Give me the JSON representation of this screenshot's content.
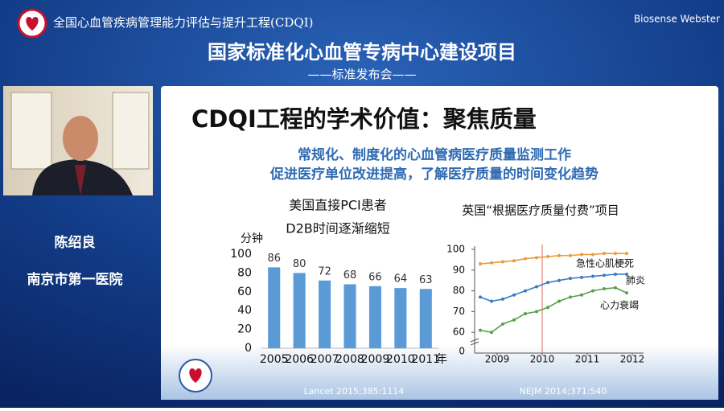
{
  "header": {
    "program": "全国心血管疾病管理能力评估与提升工程(CDQI)",
    "sponsor": "Biosense Webster",
    "title": "国家标准化心血管专病中心建设项目",
    "subtitle": "——标准发布会——"
  },
  "speaker": {
    "name": "陈绍良",
    "affiliation": "南京市第一医院"
  },
  "slide": {
    "title": "CDQI工程的学术价值：聚焦质量",
    "lines": [
      "常规化、制度化的心血管病医疗质量监测工作",
      "促进医疗单位改进提高，了解医疗质量的时间变化趋势"
    ],
    "references": [
      "Lancet 2015;385:1114",
      "NEJM 2014;371:540"
    ]
  },
  "chart_data": [
    {
      "type": "bar",
      "title": [
        "美国直接PCI患者",
        "D2B时间逐渐缩短"
      ],
      "y_label": "分钟",
      "x_label": "年",
      "categories": [
        "2005",
        "2006",
        "2007",
        "2008",
        "2009",
        "2010",
        "2011"
      ],
      "values": [
        86,
        80,
        72,
        68,
        66,
        64,
        63
      ],
      "color": "#5b9bd5",
      "ylim": [
        0,
        100
      ],
      "yticks": [
        0,
        20,
        40,
        60,
        80,
        100
      ],
      "grid": false
    },
    {
      "type": "line",
      "title": "英国“根据医疗质量付费”项目",
      "x": [
        2008.625,
        2008.875,
        2009.125,
        2009.375,
        2009.625,
        2009.875,
        2010.125,
        2010.375,
        2010.625,
        2010.875,
        2011.125,
        2011.375,
        2011.625,
        2011.875
      ],
      "series": [
        {
          "name": "急性心肌梗死",
          "color": "#ee9a3a",
          "values": [
            93,
            93.5,
            94,
            94.5,
            95.5,
            96,
            96.5,
            97,
            97,
            97.5,
            97.5,
            98,
            98,
            98
          ]
        },
        {
          "name": "肺炎",
          "color": "#3a7cc4",
          "values": [
            77,
            75,
            76,
            78,
            80,
            82,
            84,
            85,
            86,
            86.5,
            87,
            87.5,
            88,
            88
          ]
        },
        {
          "name": "心力衰竭",
          "color": "#5aa04a",
          "values": [
            61,
            60,
            64,
            66,
            69,
            70,
            72,
            75,
            77,
            78,
            80,
            81,
            81.5,
            79
          ]
        }
      ],
      "xlim": [
        2008.5,
        2012.25
      ],
      "xticks": [
        2009,
        2010,
        2011,
        2012
      ],
      "ylim": [
        50,
        100
      ],
      "yticks": [
        60,
        70,
        80,
        90,
        100
      ],
      "ybreak_label": 0,
      "marker_x": 2010,
      "marker_color": "#e06a5a",
      "grid": false
    }
  ]
}
